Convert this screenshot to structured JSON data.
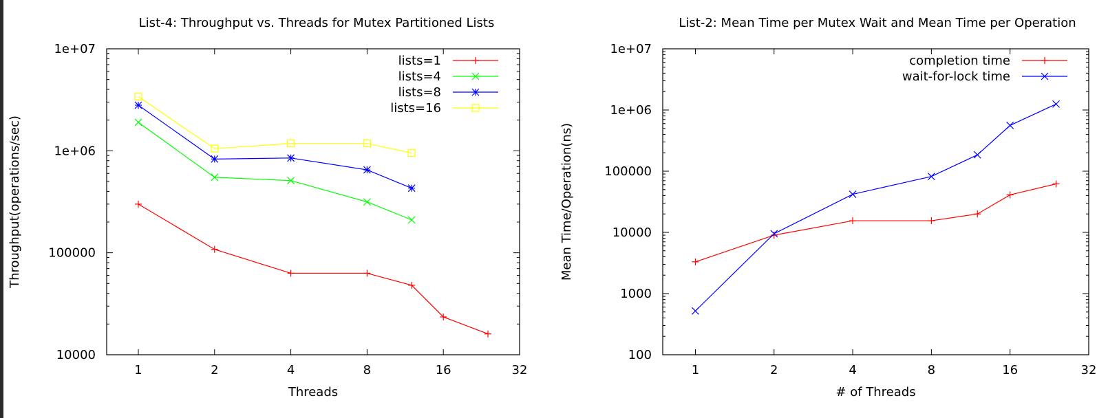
{
  "chart_data": [
    {
      "type": "line",
      "title": "List-4: Throughput vs. Threads for Mutex Partitioned Lists",
      "xlabel": "Threads",
      "ylabel": "Throughput(operations/sec)",
      "x_scale": "log2",
      "y_scale": "log10",
      "xlim": [
        0.75,
        32
      ],
      "ylim": [
        10000,
        10000000
      ],
      "xticks": [
        1,
        2,
        4,
        8,
        16,
        32
      ],
      "xtick_labels": [
        "1",
        "2",
        "4",
        "8",
        "16",
        "32"
      ],
      "yticks": [
        10000,
        100000,
        1000000,
        10000000
      ],
      "ytick_labels": [
        "10000",
        "100000",
        "1e+06",
        "1e+07"
      ],
      "legend_position": "top-right",
      "series": [
        {
          "name": "lists=1",
          "color": "#ff0000",
          "marker": "plus",
          "x": [
            1,
            2,
            4,
            8,
            12,
            16,
            24
          ],
          "y": [
            300000,
            108000,
            63000,
            63000,
            48000,
            23500,
            16000
          ]
        },
        {
          "name": "lists=4",
          "color": "#00ff00",
          "marker": "x",
          "x": [
            1,
            2,
            4,
            8,
            12
          ],
          "y": [
            1900000,
            550000,
            510000,
            315000,
            210000
          ]
        },
        {
          "name": "lists=8",
          "color": "#0000ff",
          "marker": "star",
          "x": [
            1,
            2,
            4,
            8,
            12
          ],
          "y": [
            2800000,
            830000,
            850000,
            650000,
            430000
          ]
        },
        {
          "name": "lists=16",
          "color": "#ffff00",
          "marker": "square",
          "x": [
            1,
            2,
            4,
            8,
            12
          ],
          "y": [
            3400000,
            1050000,
            1180000,
            1180000,
            950000
          ]
        }
      ]
    },
    {
      "type": "line",
      "title": "List-2: Mean Time per Mutex Wait and Mean Time per Operation",
      "xlabel": "# of Threads",
      "ylabel": "Mean Time/Operation(ns)",
      "x_scale": "log2",
      "y_scale": "log10",
      "xlim": [
        0.75,
        32
      ],
      "ylim": [
        100,
        10000000
      ],
      "xticks": [
        1,
        2,
        4,
        8,
        16,
        32
      ],
      "xtick_labels": [
        "1",
        "2",
        "4",
        "8",
        "16",
        "32"
      ],
      "yticks": [
        100,
        1000,
        10000,
        100000,
        1000000,
        10000000
      ],
      "ytick_labels": [
        "100",
        "1000",
        "10000",
        "100000",
        "1e+06",
        "1e+07"
      ],
      "legend_position": "top-right",
      "series": [
        {
          "name": "completion time",
          "color": "#ff0000",
          "marker": "plus",
          "x": [
            1,
            2,
            4,
            8,
            12,
            16,
            24
          ],
          "y": [
            3300,
            9000,
            15500,
            15500,
            20000,
            41000,
            62000
          ]
        },
        {
          "name": "wait-for-lock time",
          "color": "#0000ff",
          "marker": "x",
          "x": [
            1,
            2,
            4,
            8,
            12,
            16,
            24
          ],
          "y": [
            520,
            9500,
            42000,
            82000,
            185000,
            560000,
            1250000
          ]
        }
      ]
    }
  ]
}
